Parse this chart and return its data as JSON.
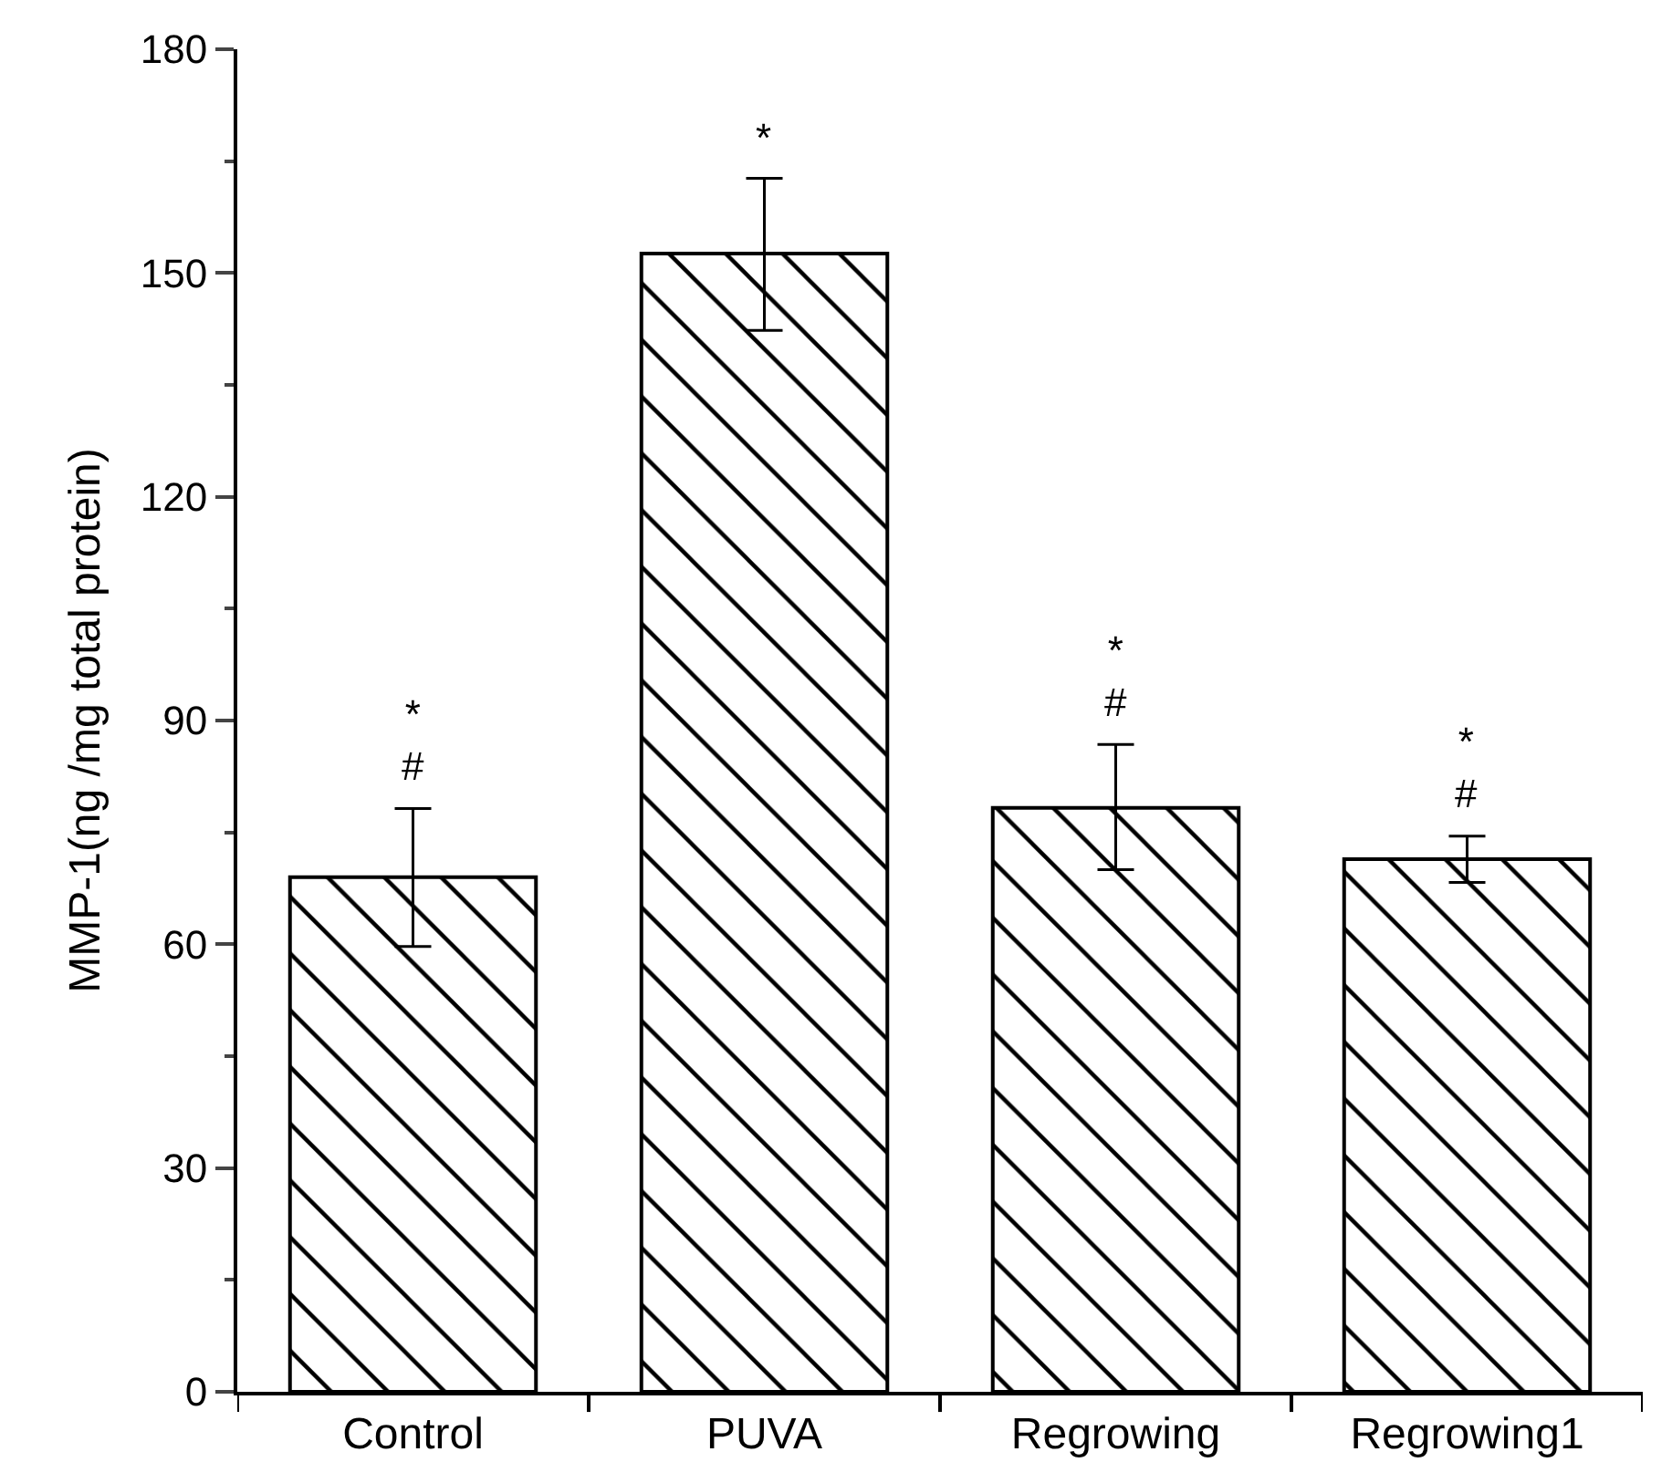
{
  "chart_data": {
    "type": "bar",
    "ylabel": "MMP-1(ng /mg total protein)",
    "categories": [
      "Control",
      "PUVA",
      "Regrowing",
      "Regrowing1"
    ],
    "values": [
      69.0,
      152.6,
      78.3,
      71.4
    ],
    "errors": [
      [
        59.7,
        78.2
      ],
      [
        142.3,
        162.7
      ],
      [
        70.0,
        86.8
      ],
      [
        68.3,
        74.5
      ]
    ],
    "color": "#000000",
    "ylim": [
      0,
      180
    ],
    "yticks": [
      0,
      30,
      60,
      90,
      120,
      150,
      180
    ],
    "annotations": [
      "*\n#",
      "*",
      "*\n#",
      "*\n#"
    ]
  }
}
